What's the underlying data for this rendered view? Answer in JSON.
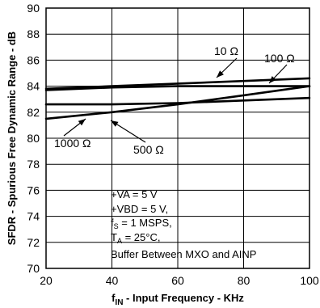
{
  "chart_data": {
    "type": "line",
    "xlabel": "f_IN - Input Frequency - KHz",
    "xlabel_parts": {
      "main": "f",
      "sub": "IN",
      "rest": " - Input Frequency - KHz"
    },
    "ylabel": "SFDR - Spurious Free Dynamic Range - dB",
    "xlim": [
      20,
      100
    ],
    "ylim": [
      70,
      90
    ],
    "x_ticks": [
      20,
      40,
      60,
      80,
      100
    ],
    "y_ticks": [
      70,
      72,
      74,
      76,
      78,
      80,
      82,
      84,
      86,
      88,
      90
    ],
    "grid": true,
    "series": [
      {
        "name": "10 Ω",
        "x": [
          20,
          40,
          60,
          80,
          100
        ],
        "y": [
          83.8,
          84.0,
          84.2,
          84.4,
          84.6
        ]
      },
      {
        "name": "100 Ω",
        "x": [
          20,
          40,
          60,
          80,
          100
        ],
        "y": [
          83.7,
          83.9,
          84.0,
          84.0,
          84.0
        ]
      },
      {
        "name": "1000 Ω",
        "x": [
          20,
          40,
          60,
          80,
          100
        ],
        "y": [
          81.5,
          82.0,
          82.6,
          83.3,
          84.0
        ]
      },
      {
        "name": "500 Ω",
        "x": [
          20,
          40,
          60,
          80,
          100
        ],
        "y": [
          82.6,
          82.6,
          82.7,
          82.9,
          83.1
        ]
      }
    ],
    "annotations": {
      "lines": [
        {
          "text": "+VA = 5 V"
        },
        {
          "text": "+VBD = 5 V,"
        },
        {
          "main": "f",
          "sub": "S",
          "rest": " = 1 MSPS,"
        },
        {
          "main": "T",
          "sub": "A",
          "rest": " = 25°C,"
        },
        {
          "text": "Buffer Between MXO and AINP"
        }
      ]
    }
  }
}
